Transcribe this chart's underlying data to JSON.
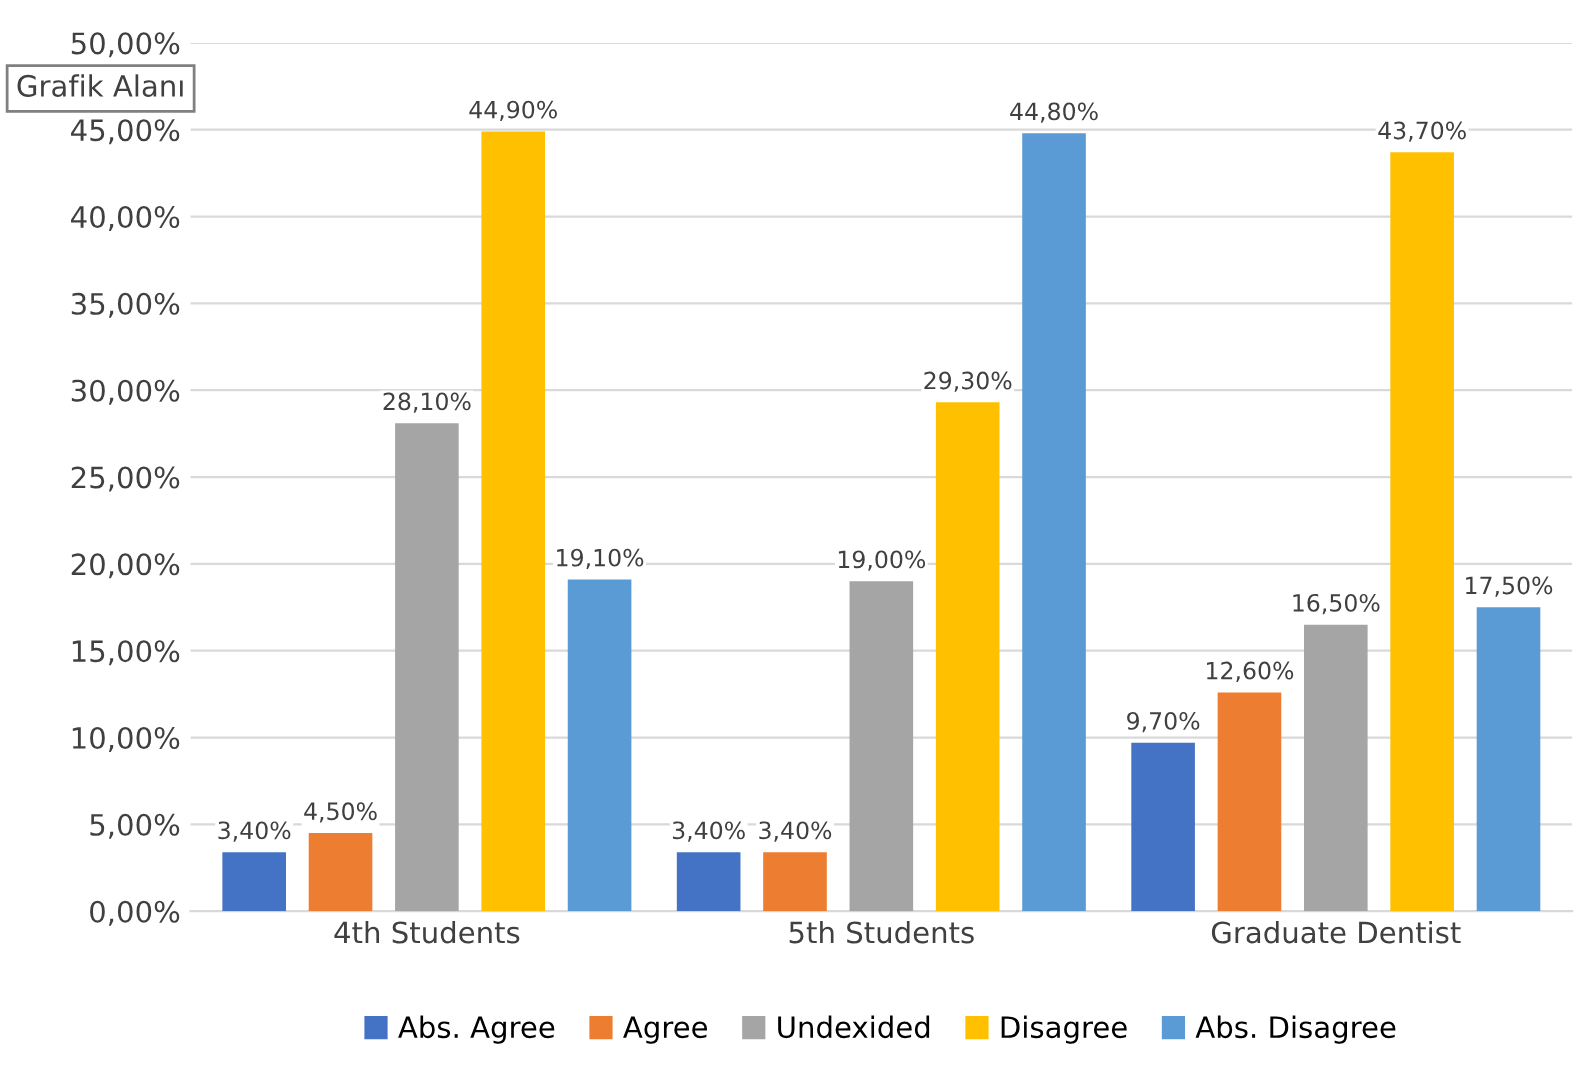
{
  "chart_data": {
    "type": "bar",
    "categories": [
      "4th Students",
      "5th Students",
      "Graduate Dentist"
    ],
    "series": [
      {
        "name": "Abs. Agree",
        "color": "#4472c4",
        "values": [
          3.4,
          3.4,
          9.7
        ],
        "value_labels": [
          "3,40%",
          "3,40%",
          "9,70%"
        ]
      },
      {
        "name": "Agree",
        "color": "#ed7d31",
        "values": [
          4.5,
          3.4,
          12.6
        ],
        "value_labels": [
          "4,50%",
          "3,40%",
          "12,60%"
        ]
      },
      {
        "name": "Undexided",
        "color": "#a5a5a5",
        "values": [
          28.1,
          19.0,
          16.5
        ],
        "value_labels": [
          "28,10%",
          "19,00%",
          "16,50%"
        ]
      },
      {
        "name": "Disagree",
        "color": "#ffc000",
        "values": [
          44.9,
          29.3,
          43.7
        ],
        "value_labels": [
          "44,90%",
          "29,30%",
          "43,70%"
        ]
      },
      {
        "name": "Abs. Disagree",
        "color": "#5b9bd5",
        "values": [
          19.1,
          44.8,
          17.5
        ],
        "value_labels": [
          "19,10%",
          "44,80%",
          "17,50%"
        ]
      }
    ],
    "ylim": [
      0,
      50
    ],
    "yticks": [
      {
        "value": 0,
        "label": "0,00%"
      },
      {
        "value": 5,
        "label": "5,00%"
      },
      {
        "value": 10,
        "label": "10,00%"
      },
      {
        "value": 15,
        "label": "15,00%"
      },
      {
        "value": 20,
        "label": "20,00%"
      },
      {
        "value": 25,
        "label": "25,00%"
      },
      {
        "value": 30,
        "label": "30,00%"
      },
      {
        "value": 35,
        "label": "35,00%"
      },
      {
        "value": 40,
        "label": "40,00%"
      },
      {
        "value": 45,
        "label": "45,00%"
      },
      {
        "value": 50,
        "label": "50,00%"
      }
    ],
    "grid": "y",
    "legend": "bottom",
    "annotations": [
      "Grafik Alanı"
    ]
  }
}
